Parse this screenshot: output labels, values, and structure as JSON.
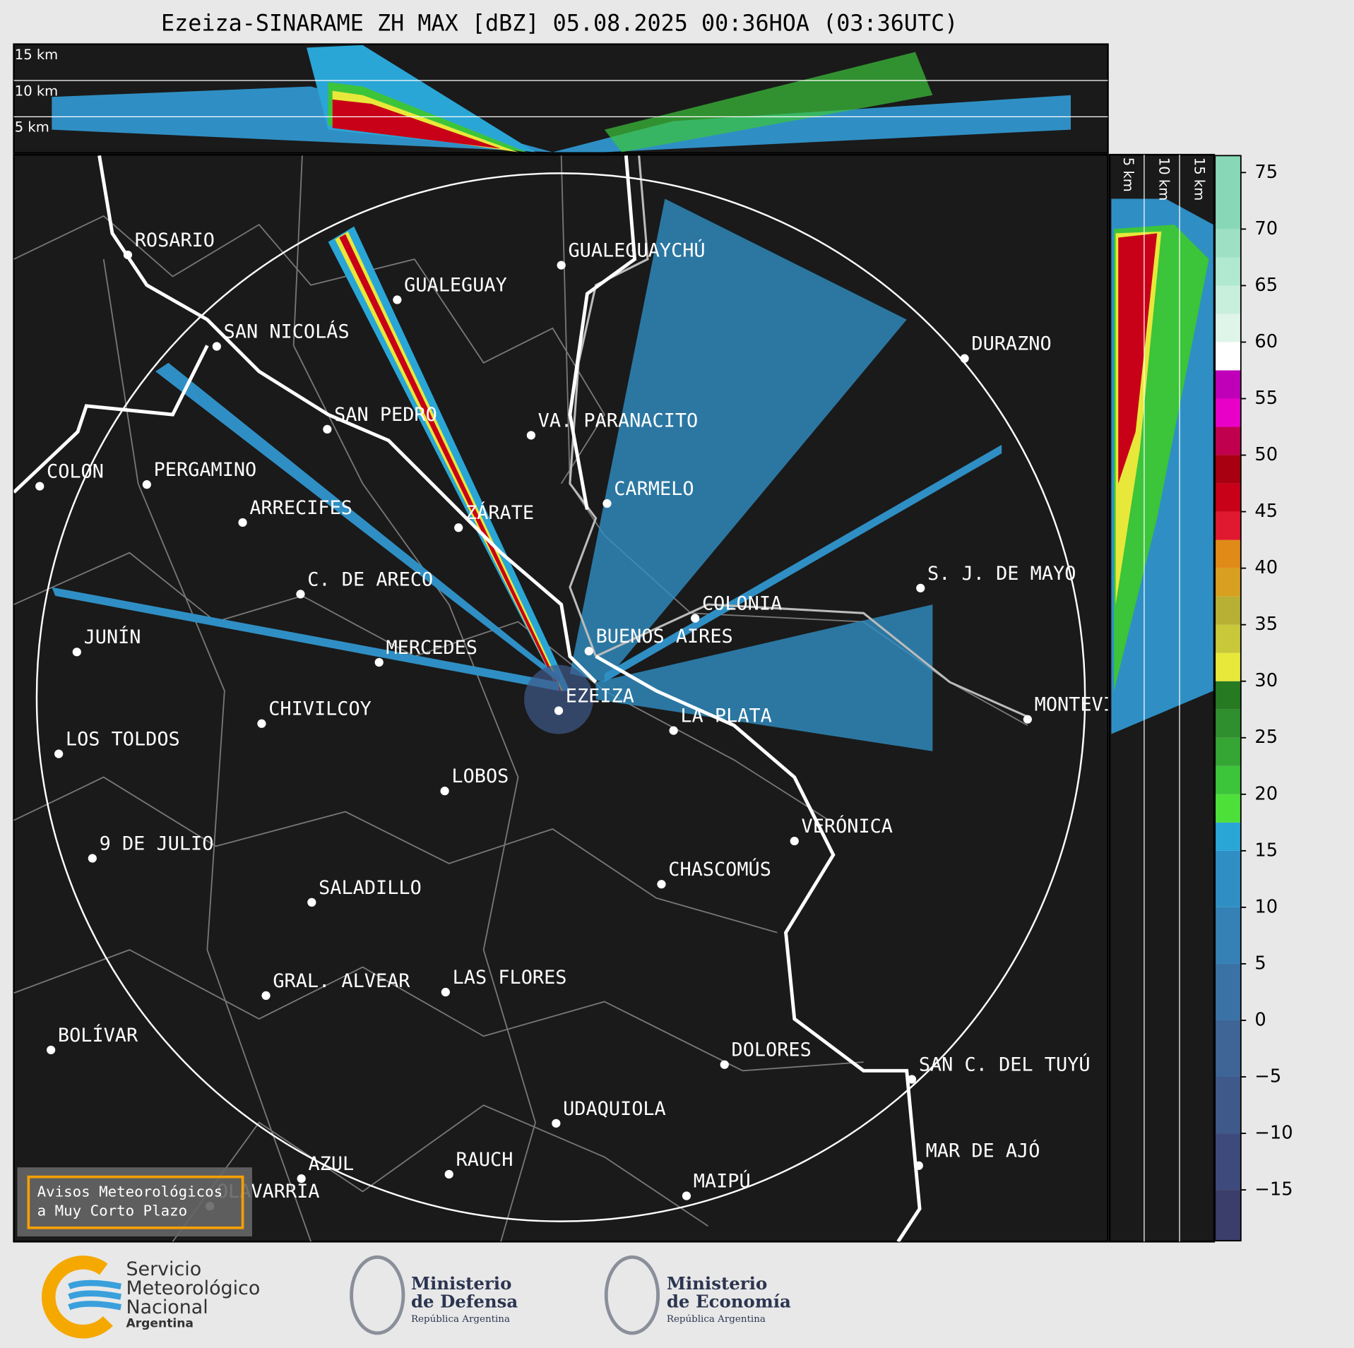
{
  "title": "Ezeiza-SINARAME ZH MAX [dBZ] 05.08.2025 00:36HOA (03:36UTC)",
  "top_panel": {
    "labels": [
      "15 km",
      "10 km",
      "5 km"
    ]
  },
  "side_panel": {
    "labels": [
      "5 km",
      "10 km",
      "15 km"
    ]
  },
  "cities": [
    "ROSARIO",
    "GUALEGUAY",
    "GUALEGUAYCHÚ",
    "SAN NICOLÁS",
    "DURAZNO",
    "SAN PEDRO",
    "VA. PARANACITO",
    "COLON",
    "PERGAMINO",
    "CARMELO",
    "ARRECIFES",
    "ZÁRATE",
    "C. DE ARECO",
    "S. J. DE MAYO",
    "COLONIA",
    "BUENOS AIRES",
    "JUNÍN",
    "MERCEDES",
    "EZEIZA",
    "MONTEVIDEO",
    "CHIVILCOY",
    "LA PLATA",
    "LOS TOLDOS",
    "LOBOS",
    "VERÓNICA",
    "9 DE JULIO",
    "CHASCOMÚS",
    "SALADILLO",
    "GRAL. ALVEAR",
    "LAS FLORES",
    "BOLÍVAR",
    "DOLORES",
    "SAN C. DEL TUYÚ",
    "UDAQUIOLA",
    "MAR DE AJÓ",
    "AZUL",
    "RAUCH",
    "MAIPÚ",
    "OLAVARRÍA"
  ],
  "warning_box": [
    "Avisos Meteorológicos",
    "a Muy Corto Plazo"
  ],
  "colorbar": {
    "lim": [
      -19.5,
      76.5
    ],
    "ticks": [
      {
        "value": -15,
        "label": "−15"
      },
      {
        "value": -10,
        "label": "−10"
      },
      {
        "value": -5,
        "label": "−5"
      },
      0,
      5,
      10,
      15,
      20,
      25,
      30,
      35,
      40,
      45,
      50,
      55,
      60,
      65,
      70,
      75
    ],
    "bands": [
      {
        "from": -19.5,
        "color": "#3b3d6b"
      },
      {
        "from": -15,
        "color": "#3f4a7c"
      },
      {
        "from": -10,
        "color": "#3f5a8a"
      },
      {
        "from": -5,
        "color": "#3e6596"
      },
      {
        "from": 0,
        "color": "#3a72a5"
      },
      {
        "from": 5,
        "color": "#3580b5"
      },
      {
        "from": 10,
        "color": "#2f8fc4"
      },
      {
        "from": 15,
        "color": "#2aa6d6"
      },
      {
        "from": 17.5,
        "color": "#4ee03a"
      },
      {
        "from": 20,
        "color": "#3cc43a"
      },
      {
        "from": 22.5,
        "color": "#35a533"
      },
      {
        "from": 25,
        "color": "#2f8e2d"
      },
      {
        "from": 27.5,
        "color": "#257a22"
      },
      {
        "from": 30,
        "color": "#e8e83a"
      },
      {
        "from": 32.5,
        "color": "#c8c83a"
      },
      {
        "from": 35,
        "color": "#b8b034"
      },
      {
        "from": 37.5,
        "color": "#d8a020"
      },
      {
        "from": 40,
        "color": "#e08a18"
      },
      {
        "from": 42.5,
        "color": "#e01830"
      },
      {
        "from": 45,
        "color": "#c80018"
      },
      {
        "from": 47.5,
        "color": "#a80010"
      },
      {
        "from": 50,
        "color": "#c0004e"
      },
      {
        "from": 52.5,
        "color": "#e800c8"
      },
      {
        "from": 55,
        "color": "#c000b8"
      },
      {
        "from": 57.5,
        "color": "#ffffff"
      },
      {
        "from": 60,
        "color": "#e0f5ea"
      },
      {
        "from": 62.5,
        "color": "#c8efdc"
      },
      {
        "from": 65,
        "color": "#b0e8d0"
      },
      {
        "from": 67.5,
        "color": "#9ee0c4"
      },
      {
        "from": 70,
        "color": "#88d8b8"
      }
    ]
  },
  "logos": {
    "smn": [
      "Servicio",
      "Meteorológico",
      "Nacional",
      "Argentina"
    ],
    "defensa": [
      "Ministerio",
      "de Defensa",
      "República Argentina"
    ],
    "economia": [
      "Ministerio",
      "de Economía",
      "República Argentina"
    ]
  }
}
